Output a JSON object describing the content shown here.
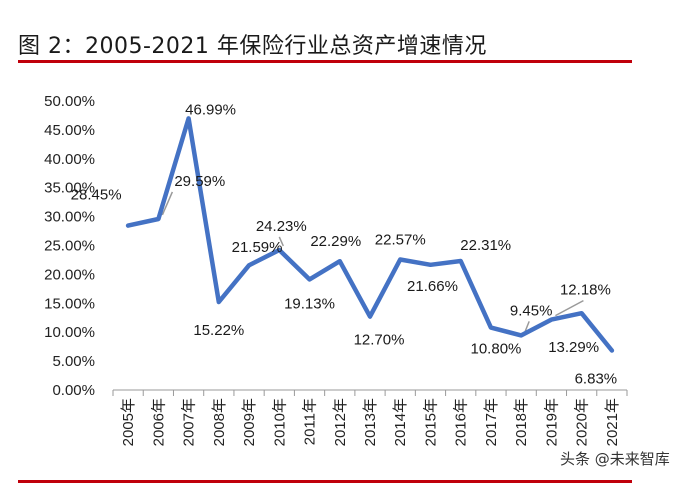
{
  "title": "图 2：2005-2021 年保险行业总资产增速情况",
  "watermark": "头条 @未来智库",
  "chart_data": {
    "type": "line",
    "categories": [
      "2005年",
      "2006年",
      "2007年",
      "2008年",
      "2009年",
      "2010年",
      "2011年",
      "2012年",
      "2013年",
      "2014年",
      "2015年",
      "2016年",
      "2017年",
      "2018年",
      "2019年",
      "2020年",
      "2021年"
    ],
    "values": [
      28.45,
      29.59,
      46.99,
      15.22,
      21.59,
      24.23,
      19.13,
      22.29,
      12.7,
      22.57,
      21.66,
      22.31,
      10.8,
      9.45,
      12.18,
      13.29,
      6.83
    ],
    "data_labels": [
      "28.45%",
      "29.59%",
      "46.99%",
      "15.22%",
      "21.59%",
      "24.23%",
      "19.13%",
      "22.29%",
      "12.70%",
      "22.57%",
      "21.66%",
      "22.31%",
      "10.80%",
      "9.45%",
      "12.18%",
      "13.29%",
      "6.83%"
    ],
    "y_ticks": [
      "0.00%",
      "5.00%",
      "10.00%",
      "15.00%",
      "20.00%",
      "25.00%",
      "30.00%",
      "35.00%",
      "40.00%",
      "45.00%",
      "50.00%"
    ],
    "ylim": [
      0,
      50
    ],
    "grid": false,
    "line_color": "#4472c4"
  }
}
